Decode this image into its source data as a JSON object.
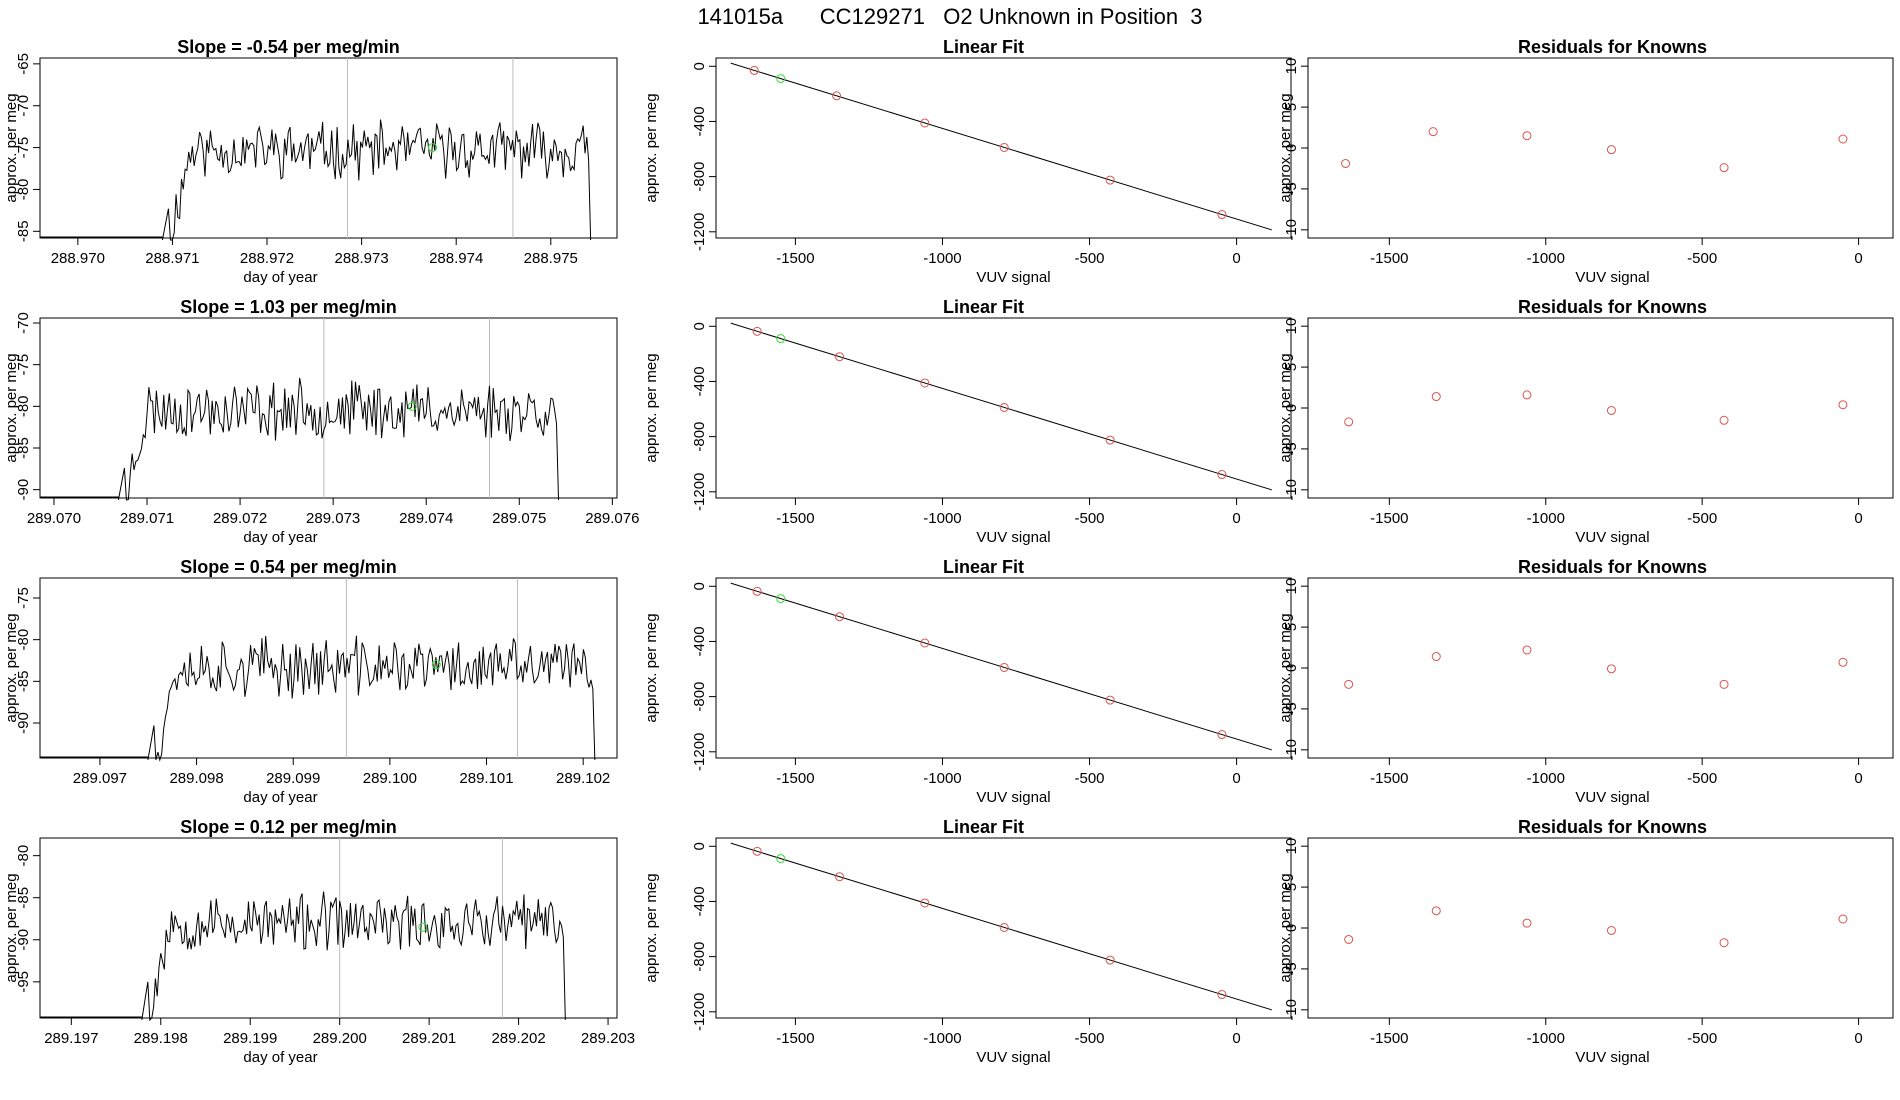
{
  "page": {
    "title": "141015a      CC129271   O2 Unknown in Position  3"
  },
  "rows": [
    {
      "time_chart": {
        "type": "line",
        "title": "Slope =  -0.54  per meg/min",
        "xlabel": "day of year",
        "ylabel": "approx. per meg",
        "xlim": [
          288.9696,
          288.9757
        ],
        "ylim": [
          -85.8,
          -64.3
        ],
        "xticks": [
          "288.970",
          "288.971",
          "288.972",
          "288.973",
          "288.974",
          "288.975"
        ],
        "yticks": [
          "-65",
          "-70",
          "-75",
          "-80",
          "-85"
        ],
        "vlines": [
          288.97285,
          288.9746
        ],
        "marker": [
          288.97375,
          -75.0
        ],
        "signal": {
          "start": 288.971,
          "end": 288.9754,
          "base": -75.3,
          "amp": 2.7,
          "seed": 11
        }
      },
      "fit_chart": {
        "type": "line",
        "title": "Linear Fit",
        "xlabel": "VUV signal",
        "ylabel": "approx. per meg",
        "xticks": [
          "-1500",
          "-1000",
          "-500",
          "0"
        ],
        "yticks": [
          "0",
          "-400",
          "-800",
          "-1200"
        ],
        "knowns_x": [
          -1640,
          -1360,
          -1060,
          -790,
          -430,
          -50
        ],
        "unknown": [
          -1550,
          -50
        ]
      },
      "resid_chart": {
        "type": "scatter",
        "title": "Residuals for Knowns",
        "xlabel": "VUV signal",
        "ylabel": "approx. per meg",
        "xticks": [
          "-1500",
          "-1000",
          "-500",
          "0"
        ],
        "yticks": [
          "10",
          "5",
          "0",
          "-5",
          "-10"
        ],
        "points": [
          [
            -1640,
            -1.9
          ],
          [
            -1360,
            2.0
          ],
          [
            -1060,
            1.5
          ],
          [
            -790,
            -0.2
          ],
          [
            -430,
            -2.4
          ],
          [
            -50,
            1.1
          ]
        ]
      }
    },
    {
      "time_chart": {
        "type": "line",
        "title": "Slope =  1.03  per meg/min",
        "xlabel": "day of year",
        "ylabel": "approx. per meg",
        "xlim": [
          289.06985,
          289.07605
        ],
        "ylim": [
          -91.0,
          -69.4
        ],
        "xticks": [
          "289.070",
          "289.071",
          "289.072",
          "289.073",
          "289.074",
          "289.075",
          "289.076"
        ],
        "yticks": [
          "-70",
          "-75",
          "-80",
          "-85",
          "-90"
        ],
        "vlines": [
          289.0729,
          289.07468
        ],
        "marker": [
          289.07385,
          -80.0
        ],
        "signal": {
          "start": 289.0708,
          "end": 289.0754,
          "base": -80.4,
          "amp": 2.9,
          "seed": 23
        }
      },
      "fit_chart": {
        "type": "line",
        "title": "Linear Fit",
        "xlabel": "VUV signal",
        "ylabel": "approx. per meg",
        "xticks": [
          "-1500",
          "-1000",
          "-500",
          "0"
        ],
        "yticks": [
          "0",
          "-400",
          "-800",
          "-1200"
        ],
        "knowns_x": [
          -1630,
          -1350,
          -1060,
          -790,
          -430,
          -50
        ],
        "unknown": [
          -1550,
          -50
        ]
      },
      "resid_chart": {
        "type": "scatter",
        "title": "Residuals for Knowns",
        "xlabel": "VUV signal",
        "ylabel": "approx. per meg",
        "xticks": [
          "-1500",
          "-1000",
          "-500",
          "0"
        ],
        "yticks": [
          "10",
          "5",
          "0",
          "-5",
          "-10"
        ],
        "points": [
          [
            -1630,
            -1.7
          ],
          [
            -1350,
            1.4
          ],
          [
            -1060,
            1.6
          ],
          [
            -790,
            -0.3
          ],
          [
            -430,
            -1.5
          ],
          [
            -50,
            0.4
          ]
        ]
      }
    },
    {
      "time_chart": {
        "type": "line",
        "title": "Slope =  0.54  per meg/min",
        "xlabel": "day of year",
        "ylabel": "approx. per meg",
        "xlim": [
          289.09638,
          289.10235
        ],
        "ylim": [
          -94.2,
          -72.6
        ],
        "xticks": [
          "289.097",
          "289.098",
          "289.099",
          "289.100",
          "289.101",
          "289.102"
        ],
        "yticks": [
          "-75",
          "-80",
          "-85",
          "-90"
        ],
        "vlines": [
          289.09955,
          289.10132
        ],
        "marker": [
          289.10048,
          -83.0
        ],
        "signal": {
          "start": 289.0976,
          "end": 289.1021,
          "base": -83.3,
          "amp": 3.0,
          "seed": 37
        }
      },
      "fit_chart": {
        "type": "line",
        "title": "Linear Fit",
        "xlabel": "VUV signal",
        "ylabel": "approx. per meg",
        "xticks": [
          "-1500",
          "-1000",
          "-500",
          "0"
        ],
        "yticks": [
          "0",
          "-400",
          "-800",
          "-1200"
        ],
        "knowns_x": [
          -1630,
          -1350,
          -1060,
          -790,
          -430,
          -50
        ],
        "unknown": [
          -1550,
          -50
        ]
      },
      "resid_chart": {
        "type": "scatter",
        "title": "Residuals for Knowns",
        "xlabel": "VUV signal",
        "ylabel": "approx. per meg",
        "xticks": [
          "-1500",
          "-1000",
          "-500",
          "0"
        ],
        "yticks": [
          "10",
          "5",
          "0",
          "-5",
          "-10"
        ],
        "points": [
          [
            -1630,
            -2.0
          ],
          [
            -1350,
            1.4
          ],
          [
            -1060,
            2.2
          ],
          [
            -790,
            -0.1
          ],
          [
            -430,
            -2.0
          ],
          [
            -50,
            0.7
          ]
        ]
      }
    },
    {
      "time_chart": {
        "type": "line",
        "title": "Slope =  0.12  per meg/min",
        "xlabel": "day of year",
        "ylabel": "approx. per meg",
        "xlim": [
          289.19665,
          289.2031
        ],
        "ylim": [
          -99.3,
          -77.9
        ],
        "xticks": [
          "289.197",
          "289.198",
          "289.199",
          "289.200",
          "289.201",
          "289.202",
          "289.203"
        ],
        "yticks": [
          "-80",
          "-85",
          "-90",
          "-95"
        ],
        "vlines": [
          289.2,
          289.20182
        ],
        "marker": [
          289.20093,
          -88.5
        ],
        "signal": {
          "start": 289.1979,
          "end": 289.2025,
          "base": -88.0,
          "amp": 2.8,
          "seed": 53
        }
      },
      "fit_chart": {
        "type": "line",
        "title": "Linear Fit",
        "xlabel": "VUV signal",
        "ylabel": "approx. per meg",
        "xticks": [
          "-1500",
          "-1000",
          "-500",
          "0"
        ],
        "yticks": [
          "0",
          "-400",
          "-800",
          "-1200"
        ],
        "knowns_x": [
          -1630,
          -1350,
          -1060,
          -790,
          -430,
          -50
        ],
        "unknown": [
          -1550,
          -50
        ]
      },
      "resid_chart": {
        "type": "scatter",
        "title": "Residuals for Knowns",
        "xlabel": "VUV signal",
        "ylabel": "approx. per meg",
        "xticks": [
          "-1500",
          "-1000",
          "-500",
          "0"
        ],
        "yticks": [
          "10",
          "5",
          "0",
          "-5",
          "-10"
        ],
        "points": [
          [
            -1630,
            -1.4
          ],
          [
            -1350,
            2.1
          ],
          [
            -1060,
            0.6
          ],
          [
            -790,
            -0.3
          ],
          [
            -430,
            -1.8
          ],
          [
            -50,
            1.1
          ]
        ]
      }
    }
  ],
  "colors": {
    "line": "#000000",
    "known_marker": "#d9544d",
    "unknown_marker": "#33dd33",
    "vline": "#bbbbbb"
  }
}
